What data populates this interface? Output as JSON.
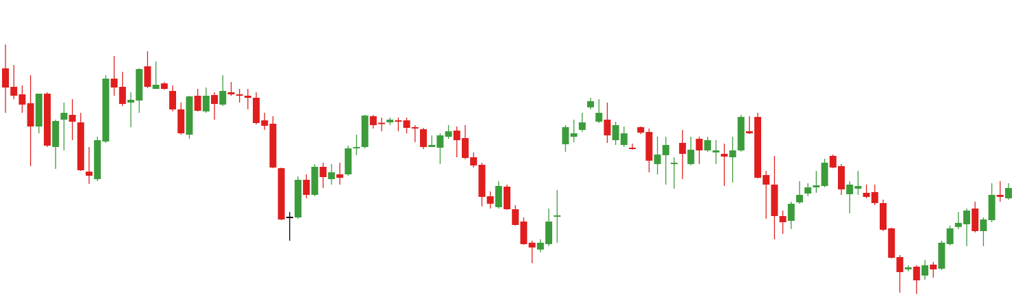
{
  "chart_data": {
    "type": "candlestick",
    "ylim": [
      0,
      449
    ],
    "up_color": "#3c9c3c",
    "down_color": "#e01e1e",
    "flat_color": "#000000",
    "open": [
      349,
      322,
      311,
      298,
      264,
      312,
      234,
      274,
      281,
      270,
      198,
      187,
      242,
      334,
      322,
      299,
      302,
      352,
      319,
      327,
      316,
      289,
      252,
      309,
      286,
      310,
      296,
      314,
      311,
      309,
      306,
      273,
      268,
      203,
      131,
      131,
      186,
      164,
      205,
      187,
      194,
      194,
      232,
      234,
      279,
      269,
      270,
      273,
      273,
      263,
      260,
      234,
      233,
      249,
      258,
      247,
      219,
      208,
      162,
      146,
      176,
      143,
      125,
      94,
      84,
      92,
      132,
      238,
      249,
      259,
      292,
      271,
      274,
      244,
      237,
      233,
      263,
      256,
      209,
      222,
      209,
      240,
      209,
      246,
      229,
      226,
      224,
      219,
      229,
      257,
      278,
      193,
      179,
      133,
      126,
      153,
      166,
      175,
      177,
      221,
      206,
      165,
      173,
      167,
      168,
      152,
      115,
      73,
      55,
      59,
      46,
      62,
      56,
      92,
      117,
      121,
      144,
      111,
      127,
      164,
      159
    ],
    "high": [
      384,
      354,
      324,
      339,
      312,
      314,
      274,
      299,
      304,
      284,
      234,
      249,
      339,
      367,
      344,
      314,
      349,
      374,
      359,
      329,
      324,
      299,
      309,
      319,
      321,
      314,
      339,
      329,
      319,
      319,
      314,
      284,
      279,
      204,
      139,
      191,
      194,
      209,
      211,
      209,
      211,
      236,
      252,
      281,
      281,
      277,
      277,
      277,
      277,
      266,
      262,
      251,
      254,
      266,
      264,
      266,
      226,
      211,
      169,
      184,
      179,
      149,
      131,
      97,
      99,
      144,
      171,
      266,
      274,
      284,
      306,
      304,
      299,
      271,
      264,
      239,
      264,
      261,
      249,
      249,
      219,
      259,
      249,
      249,
      249,
      244,
      239,
      249,
      281,
      279,
      284,
      199,
      221,
      141,
      154,
      184,
      181,
      199,
      217,
      223,
      209,
      184,
      199,
      179,
      179,
      157,
      116,
      76,
      61,
      61,
      69,
      66,
      97,
      119,
      139,
      144,
      154,
      131,
      181,
      184,
      181
    ],
    "low": [
      284,
      304,
      284,
      206,
      254,
      234,
      202,
      229,
      244,
      199,
      180,
      184,
      240,
      309,
      294,
      263,
      284,
      320,
      319,
      318,
      286,
      252,
      246,
      286,
      284,
      274,
      294,
      309,
      299,
      289,
      267,
      259,
      203,
      127,
      97,
      129,
      159,
      162,
      174,
      179,
      179,
      192,
      222,
      232,
      261,
      257,
      266,
      257,
      254,
      241,
      231,
      234,
      209,
      246,
      219,
      216,
      204,
      147,
      144,
      144,
      142,
      119,
      91,
      64,
      80,
      89,
      94,
      227,
      241,
      256,
      289,
      269,
      240,
      237,
      234,
      230,
      253,
      197,
      194,
      179,
      173,
      187,
      207,
      209,
      227,
      209,
      177,
      182,
      227,
      253,
      188,
      129,
      99,
      107,
      114,
      151,
      162,
      167,
      175,
      203,
      164,
      137,
      164,
      159,
      149,
      111,
      71,
      21,
      52,
      19,
      40,
      43,
      54,
      90,
      114,
      89,
      109,
      89,
      124,
      154,
      157
    ],
    "close": [
      321,
      309,
      296,
      264,
      312,
      236,
      272,
      284,
      271,
      200,
      192,
      244,
      334,
      321,
      297,
      303,
      348,
      322,
      325,
      319,
      289,
      254,
      308,
      287,
      309,
      297,
      316,
      311,
      309,
      306,
      269,
      265,
      204,
      128,
      131,
      186,
      164,
      205,
      190,
      197,
      189,
      232,
      234,
      280,
      266,
      268,
      274,
      271,
      262,
      261,
      234,
      237,
      251,
      257,
      244,
      218,
      207,
      161,
      151,
      177,
      143,
      120,
      92,
      87,
      94,
      125,
      134,
      263,
      254,
      270,
      301,
      284,
      251,
      266,
      254,
      231,
      255,
      214,
      223,
      237,
      211,
      224,
      230,
      229,
      244,
      229,
      220,
      229,
      278,
      254,
      189,
      179,
      133,
      124,
      151,
      164,
      175,
      178,
      211,
      204,
      172,
      179,
      177,
      161,
      152,
      113,
      72,
      51,
      58,
      39,
      61,
      55,
      94,
      115,
      123,
      141,
      111,
      128,
      164,
      161,
      174
    ]
  }
}
